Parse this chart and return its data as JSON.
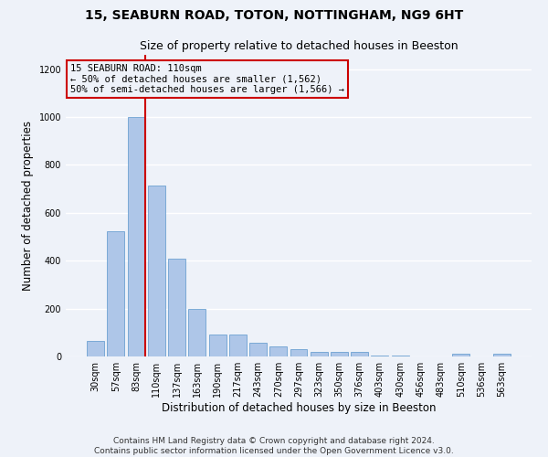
{
  "title1": "15, SEABURN ROAD, TOTON, NOTTINGHAM, NG9 6HT",
  "title2": "Size of property relative to detached houses in Beeston",
  "xlabel": "Distribution of detached houses by size in Beeston",
  "ylabel": "Number of detached properties",
  "categories": [
    "30sqm",
    "57sqm",
    "83sqm",
    "110sqm",
    "137sqm",
    "163sqm",
    "190sqm",
    "217sqm",
    "243sqm",
    "270sqm",
    "297sqm",
    "323sqm",
    "350sqm",
    "376sqm",
    "403sqm",
    "430sqm",
    "456sqm",
    "483sqm",
    "510sqm",
    "536sqm",
    "563sqm"
  ],
  "values": [
    65,
    525,
    1000,
    715,
    408,
    198,
    90,
    90,
    57,
    42,
    32,
    20,
    18,
    18,
    5,
    5,
    0,
    0,
    12,
    0,
    12
  ],
  "bar_color": "#aec6e8",
  "bar_edge_color": "#5a96cc",
  "highlight_line_color": "#cc0000",
  "annotation_text": "15 SEABURN ROAD: 110sqm\n← 50% of detached houses are smaller (1,562)\n50% of semi-detached houses are larger (1,566) →",
  "annotation_box_color": "#cc0000",
  "ylim": [
    0,
    1260
  ],
  "yticks": [
    0,
    200,
    400,
    600,
    800,
    1000,
    1200
  ],
  "footnote": "Contains HM Land Registry data © Crown copyright and database right 2024.\nContains public sector information licensed under the Open Government Licence v3.0.",
  "background_color": "#eef2f9",
  "grid_color": "#ffffff",
  "title1_fontsize": 10,
  "title2_fontsize": 9,
  "xlabel_fontsize": 8.5,
  "ylabel_fontsize": 8.5,
  "footnote_fontsize": 6.5,
  "tick_fontsize": 7,
  "annot_fontsize": 7.5
}
